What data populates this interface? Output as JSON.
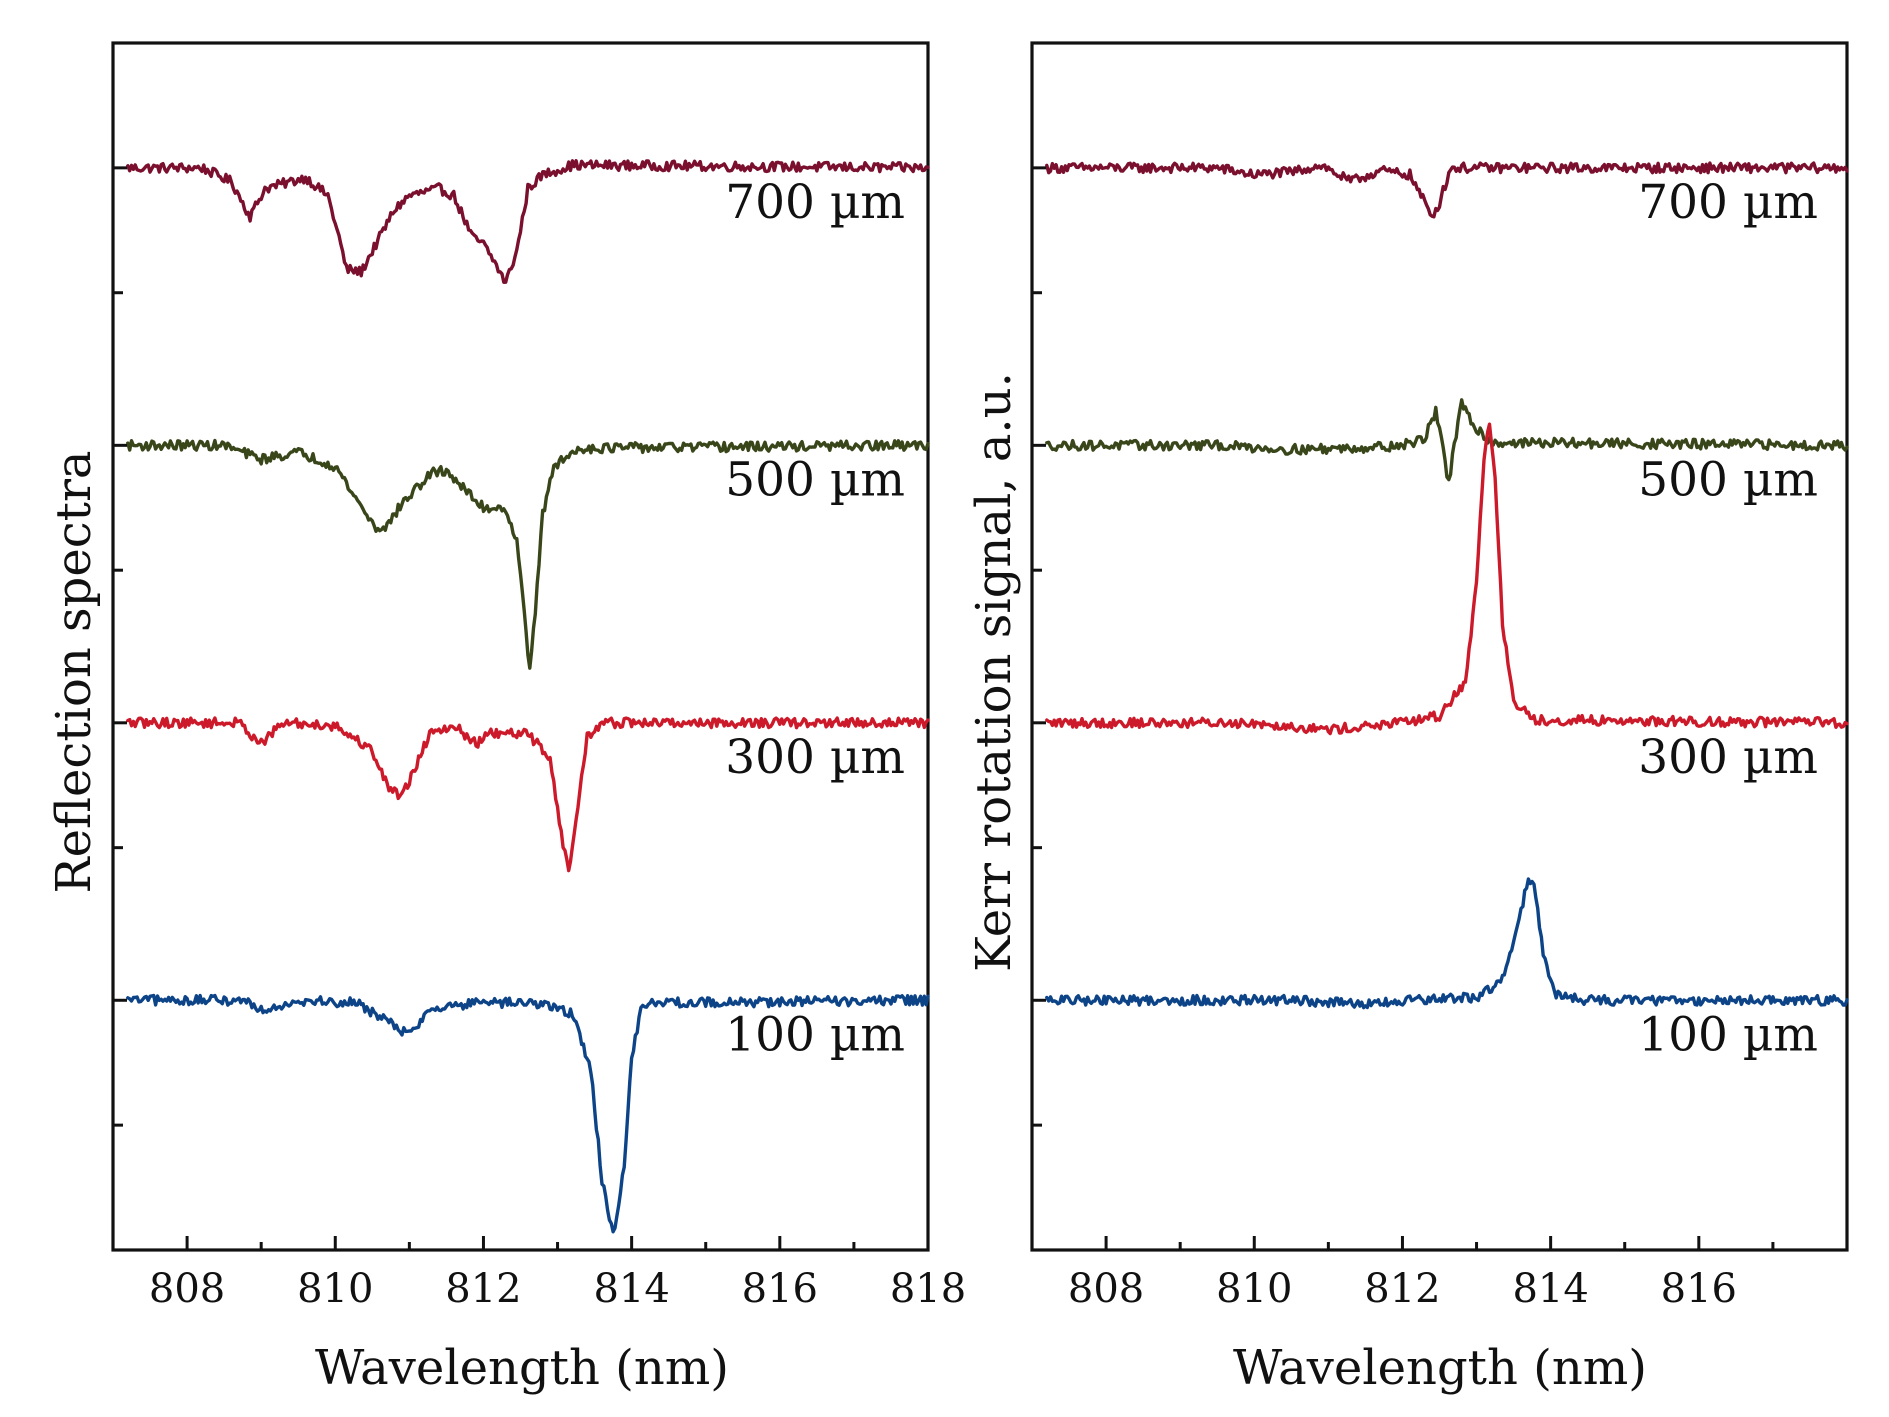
{
  "chart_data": [
    {
      "type": "line",
      "panel": "left",
      "xlabel": "Wavelength (nm)",
      "ylabel": "Reflection spectra",
      "xlim": [
        807,
        818
      ],
      "ylim": [
        0,
        8.7
      ],
      "xticks": [
        808,
        810,
        812,
        814,
        816,
        818
      ],
      "xtick_labels": [
        "808",
        "810",
        "812",
        "814",
        "816",
        "818"
      ],
      "minor_xtick_step": 1,
      "yticks": [
        0.9,
        2.9,
        4.9,
        6.9
      ],
      "grid": false,
      "legend": "none",
      "series": [
        {
          "name": "700 µm",
          "color": "#7a0f2e",
          "baseline": 7.8,
          "points": [
            [
              807.2,
              7.8
            ],
            [
              808.2,
              7.8
            ],
            [
              808.6,
              7.7
            ],
            [
              808.85,
              7.45
            ],
            [
              809.05,
              7.65
            ],
            [
              809.6,
              7.73
            ],
            [
              809.9,
              7.6
            ],
            [
              810.05,
              7.3
            ],
            [
              810.15,
              7.07
            ],
            [
              810.35,
              7.05
            ],
            [
              810.5,
              7.2
            ],
            [
              810.8,
              7.5
            ],
            [
              811.0,
              7.6
            ],
            [
              811.4,
              7.65
            ],
            [
              811.6,
              7.6
            ],
            [
              811.85,
              7.3
            ],
            [
              812.0,
              7.25
            ],
            [
              812.15,
              7.12
            ],
            [
              812.3,
              6.97
            ],
            [
              812.45,
              7.2
            ],
            [
              812.6,
              7.65
            ],
            [
              812.8,
              7.75
            ],
            [
              813.2,
              7.82
            ],
            [
              818,
              7.8
            ]
          ]
        },
        {
          "name": "500 µm",
          "color": "#39461a",
          "baseline": 5.8,
          "points": [
            [
              807.2,
              5.8
            ],
            [
              808.5,
              5.8
            ],
            [
              809.0,
              5.7
            ],
            [
              809.5,
              5.75
            ],
            [
              810.0,
              5.65
            ],
            [
              810.3,
              5.4
            ],
            [
              810.55,
              5.2
            ],
            [
              810.7,
              5.22
            ],
            [
              810.9,
              5.38
            ],
            [
              811.3,
              5.6
            ],
            [
              811.5,
              5.62
            ],
            [
              811.8,
              5.45
            ],
            [
              812.0,
              5.35
            ],
            [
              812.3,
              5.35
            ],
            [
              812.45,
              5.1
            ],
            [
              812.55,
              4.6
            ],
            [
              812.62,
              4.2
            ],
            [
              812.7,
              4.6
            ],
            [
              812.8,
              5.3
            ],
            [
              812.95,
              5.65
            ],
            [
              813.3,
              5.78
            ],
            [
              818,
              5.8
            ]
          ]
        },
        {
          "name": "300 µm",
          "color": "#cc1a2a",
          "baseline": 3.8,
          "points": [
            [
              807.2,
              3.8
            ],
            [
              808.7,
              3.8
            ],
            [
              809.0,
              3.65
            ],
            [
              809.3,
              3.8
            ],
            [
              810.0,
              3.78
            ],
            [
              810.5,
              3.6
            ],
            [
              810.7,
              3.35
            ],
            [
              810.85,
              3.28
            ],
            [
              811.0,
              3.38
            ],
            [
              811.3,
              3.75
            ],
            [
              811.6,
              3.78
            ],
            [
              811.9,
              3.65
            ],
            [
              812.1,
              3.72
            ],
            [
              812.6,
              3.72
            ],
            [
              812.9,
              3.55
            ],
            [
              813.05,
              3.0
            ],
            [
              813.15,
              2.72
            ],
            [
              813.25,
              3.1
            ],
            [
              813.4,
              3.7
            ],
            [
              813.6,
              3.8
            ],
            [
              818,
              3.8
            ]
          ]
        },
        {
          "name": "100 µm",
          "color": "#0d4488",
          "baseline": 1.8,
          "points": [
            [
              807.2,
              1.8
            ],
            [
              808.8,
              1.8
            ],
            [
              809.0,
              1.73
            ],
            [
              809.5,
              1.8
            ],
            [
              810.3,
              1.78
            ],
            [
              810.7,
              1.65
            ],
            [
              811.0,
              1.55
            ],
            [
              811.3,
              1.75
            ],
            [
              812.0,
              1.78
            ],
            [
              812.8,
              1.78
            ],
            [
              813.2,
              1.7
            ],
            [
              813.45,
              1.3
            ],
            [
              813.6,
              0.5
            ],
            [
              813.75,
              0.1
            ],
            [
              813.9,
              0.6
            ],
            [
              814.0,
              1.4
            ],
            [
              814.15,
              1.78
            ],
            [
              818,
              1.8
            ]
          ]
        }
      ]
    },
    {
      "type": "line",
      "panel": "right",
      "xlabel": "Wavelength (nm)",
      "ylabel": "Kerr rotation signal, a.u.",
      "xlim": [
        807,
        818
      ],
      "ylim": [
        0,
        8.7
      ],
      "xticks": [
        808,
        810,
        812,
        814,
        816
      ],
      "xtick_labels": [
        "808",
        "810",
        "812",
        "814",
        "816"
      ],
      "minor_xtick_step": 1,
      "yticks": [
        0.9,
        2.9,
        4.9,
        6.9
      ],
      "grid": false,
      "legend": "none",
      "series": [
        {
          "name": "700 µm",
          "color": "#7a0f2e",
          "baseline": 7.8,
          "points": [
            [
              807.2,
              7.8
            ],
            [
              809.5,
              7.8
            ],
            [
              810.0,
              7.75
            ],
            [
              810.5,
              7.77
            ],
            [
              810.9,
              7.82
            ],
            [
              811.3,
              7.7
            ],
            [
              811.7,
              7.78
            ],
            [
              812.1,
              7.75
            ],
            [
              812.25,
              7.6
            ],
            [
              812.4,
              7.45
            ],
            [
              812.5,
              7.55
            ],
            [
              812.65,
              7.8
            ],
            [
              813.0,
              7.8
            ],
            [
              818,
              7.8
            ]
          ]
        },
        {
          "name": "500 µm",
          "color": "#39461a",
          "baseline": 5.8,
          "points": [
            [
              807.2,
              5.8
            ],
            [
              809.5,
              5.8
            ],
            [
              810.5,
              5.77
            ],
            [
              811.3,
              5.78
            ],
            [
              812.0,
              5.8
            ],
            [
              812.3,
              5.85
            ],
            [
              812.45,
              6.05
            ],
            [
              812.55,
              5.8
            ],
            [
              812.62,
              5.5
            ],
            [
              812.7,
              5.8
            ],
            [
              812.8,
              6.1
            ],
            [
              812.95,
              5.95
            ],
            [
              813.2,
              5.82
            ],
            [
              818,
              5.8
            ]
          ]
        },
        {
          "name": "300 µm",
          "color": "#cc1a2a",
          "baseline": 3.8,
          "points": [
            [
              807.2,
              3.8
            ],
            [
              810.0,
              3.8
            ],
            [
              811.0,
              3.75
            ],
            [
              812.0,
              3.8
            ],
            [
              812.5,
              3.85
            ],
            [
              812.85,
              4.1
            ],
            [
              813.0,
              4.8
            ],
            [
              813.1,
              5.7
            ],
            [
              813.17,
              5.98
            ],
            [
              813.25,
              5.6
            ],
            [
              813.35,
              4.5
            ],
            [
              813.5,
              3.95
            ],
            [
              813.8,
              3.82
            ],
            [
              818,
              3.8
            ]
          ]
        },
        {
          "name": "100 µm",
          "color": "#0d4488",
          "baseline": 1.8,
          "points": [
            [
              807.2,
              1.8
            ],
            [
              810.5,
              1.8
            ],
            [
              811.5,
              1.77
            ],
            [
              812.2,
              1.8
            ],
            [
              813.0,
              1.82
            ],
            [
              813.35,
              1.95
            ],
            [
              813.55,
              2.3
            ],
            [
              813.7,
              2.7
            ],
            [
              813.78,
              2.6
            ],
            [
              813.9,
              2.15
            ],
            [
              814.05,
              1.85
            ],
            [
              814.4,
              1.8
            ],
            [
              818,
              1.8
            ]
          ]
        }
      ]
    }
  ]
}
